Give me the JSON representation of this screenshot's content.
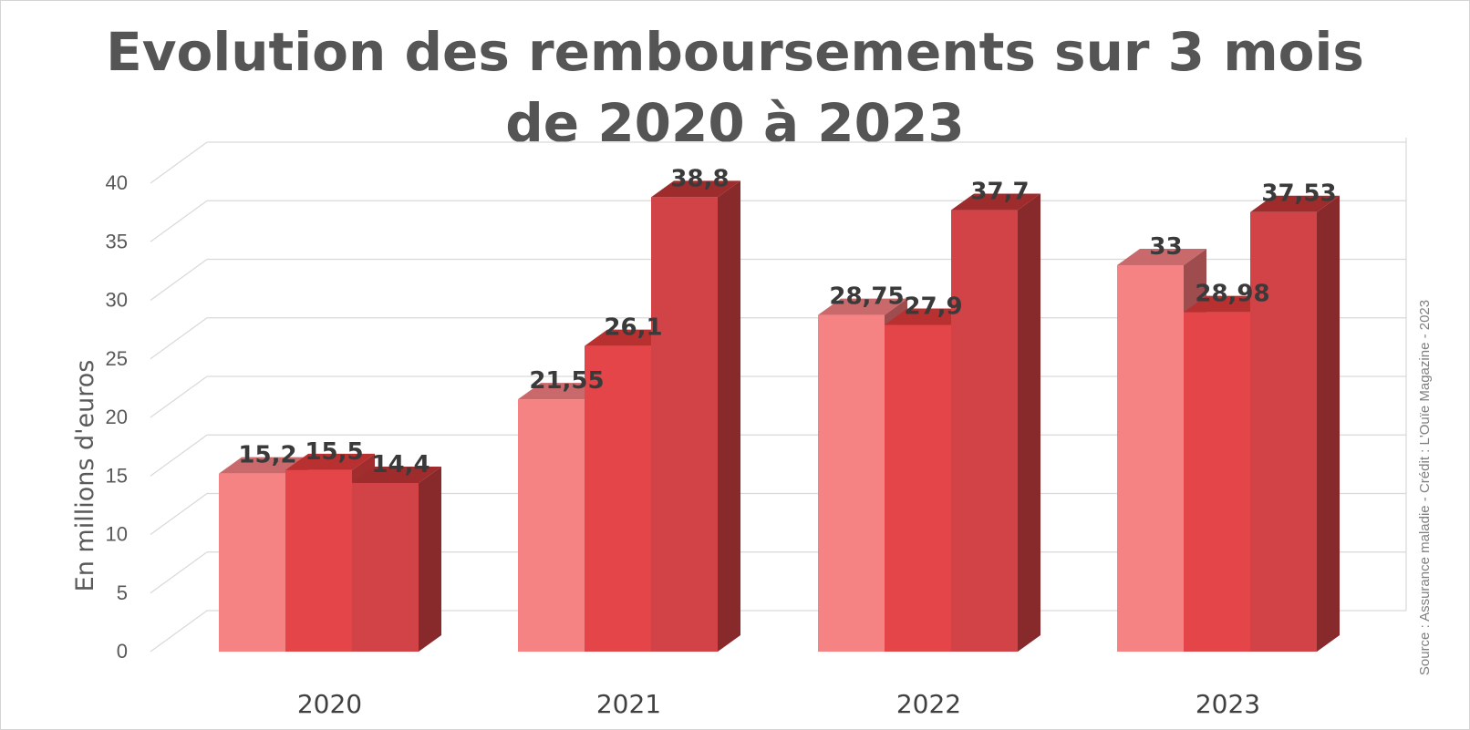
{
  "chart_data": {
    "type": "bar",
    "title_line1": "Evolution des remboursements sur 3 mois",
    "title_line2": "de 2020 à 2023",
    "ylabel": "En millions d'euros",
    "source": "Source : Assurance maladie - Crédit : L'Ouïe Magazine - 2023",
    "categories": [
      "2020",
      "2021",
      "2022",
      "2023"
    ],
    "series": [
      {
        "values": [
          15.2,
          21.55,
          28.75,
          33
        ],
        "labels": [
          "15,2",
          "21,55",
          "28,75",
          "33"
        ]
      },
      {
        "values": [
          15.5,
          26.1,
          27.9,
          28.98
        ],
        "labels": [
          "15,5",
          "26,1",
          "27,9",
          "28,98"
        ]
      },
      {
        "values": [
          14.4,
          38.8,
          37.7,
          37.53
        ],
        "labels": [
          "14,4",
          "38,8",
          "37,7",
          "37,53"
        ]
      }
    ],
    "ylim": [
      0,
      40
    ],
    "yticks": [
      0,
      5,
      10,
      15,
      20,
      25,
      30,
      35,
      40
    ],
    "grid": true,
    "legend": "none",
    "colors": {
      "series_front": [
        "#f58383",
        "#e34548",
        "#d14347"
      ],
      "series_top": [
        "#c9696b",
        "#b8302f",
        "#9e2c2c"
      ],
      "series_side": [
        "#9f4c4f",
        "#a12d2e",
        "#88292b"
      ],
      "grid": "#d9d9d9",
      "title": "#555555"
    }
  }
}
